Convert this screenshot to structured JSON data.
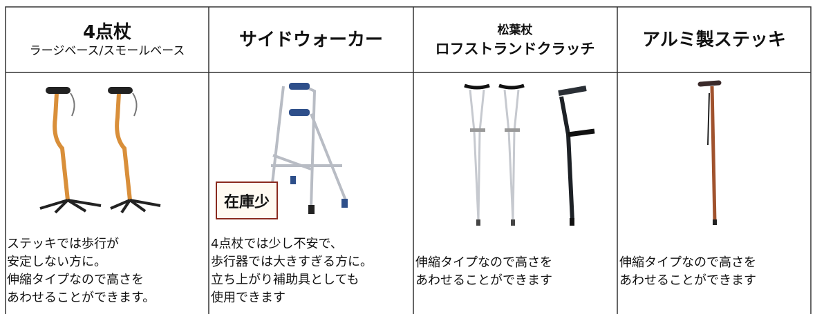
{
  "columns": [
    {
      "header": [
        "4点杖",
        "ラージベース/スモールベース"
      ],
      "description": [
        "ステッキでは歩行が",
        "安定しない方に。",
        "伸縮タイプなので高さを",
        "あわせることができます。"
      ]
    },
    {
      "header": [
        "サイドウォーカー"
      ],
      "badge": "在庫少",
      "description": [
        "4点杖では少し不安で、",
        "歩行器では大きすぎる方に。",
        "立ち上がり補助具としても",
        "使用できます"
      ]
    },
    {
      "header": [
        "松葉杖",
        "ロフストランドクラッチ"
      ],
      "description": [
        "伸縮タイプなので高さを",
        "あわせることができます"
      ]
    },
    {
      "header": [
        "アルミ製ステッキ"
      ],
      "description": [
        "伸縮タイプなので高さを",
        "あわせることができます"
      ]
    }
  ]
}
